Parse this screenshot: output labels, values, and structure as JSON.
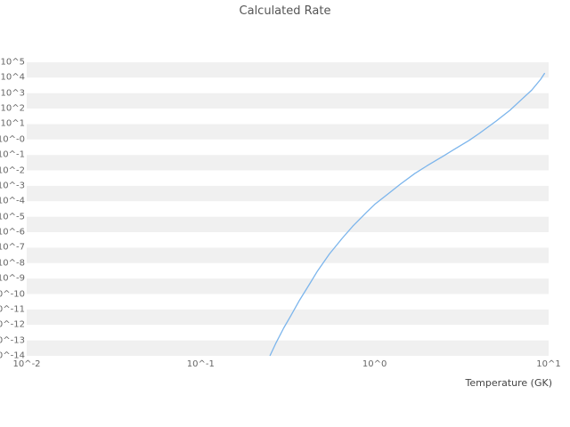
{
  "chart_data": {
    "type": "line",
    "title": "Calculated Rate",
    "xlabel": "Temperature (GK)",
    "ylabel": "",
    "x_scale": "log",
    "y_scale": "log",
    "x_exp_range": [
      -2,
      1
    ],
    "y_exp_range": [
      -14,
      5
    ],
    "x_ticks": [
      -2,
      -1,
      0,
      1
    ],
    "x_tick_labels": [
      "10^-2",
      "10^-1",
      "10^0",
      "10^1"
    ],
    "y_tick_labels": [
      "10^5",
      "10^4",
      "10^3",
      "10^2",
      "10^1",
      "10^-0",
      "10^-1",
      "10^-2",
      "10^-3",
      "10^-4",
      "10^-5",
      "10^-6",
      "10^-7",
      "10^-8",
      "10^-9",
      "10^-10",
      "10^-11",
      "10^-12",
      "10^-13",
      "10^-14"
    ],
    "grid_bands": true,
    "band_color": "#f0f0f0",
    "legend": "none",
    "series": [
      {
        "name": "Calculated Rate",
        "color": "#7cb5ec",
        "points_format": "[temperature_GK, log10(rate)]",
        "points": [
          [
            0.25,
            -14.0
          ],
          [
            0.27,
            -13.2
          ],
          [
            0.3,
            -12.2
          ],
          [
            0.33,
            -11.4
          ],
          [
            0.37,
            -10.4
          ],
          [
            0.42,
            -9.4
          ],
          [
            0.47,
            -8.5
          ],
          [
            0.55,
            -7.4
          ],
          [
            0.65,
            -6.4
          ],
          [
            0.75,
            -5.6
          ],
          [
            0.9,
            -4.7
          ],
          [
            1.0,
            -4.2
          ],
          [
            1.2,
            -3.5
          ],
          [
            1.4,
            -2.9
          ],
          [
            1.7,
            -2.2
          ],
          [
            2.0,
            -1.7
          ],
          [
            2.5,
            -1.05
          ],
          [
            3.0,
            -0.5
          ],
          [
            3.5,
            -0.05
          ],
          [
            4.0,
            0.4
          ],
          [
            5.0,
            1.2
          ],
          [
            6.0,
            1.9
          ],
          [
            7.0,
            2.6
          ],
          [
            8.0,
            3.2
          ],
          [
            9.0,
            3.9
          ],
          [
            9.5,
            4.3
          ]
        ]
      }
    ]
  }
}
